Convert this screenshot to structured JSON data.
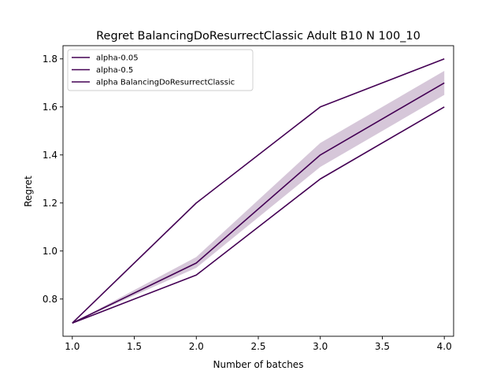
{
  "chart_data": {
    "type": "line",
    "title": "Regret BalancingDoResurrectClassic Adult B10 N 100_10",
    "xlabel": "Number of batches",
    "ylabel": "Regret",
    "xlim": [
      0.925,
      4.075
    ],
    "ylim": [
      0.645,
      1.855
    ],
    "xticks": [
      "1.0",
      "1.5",
      "2.0",
      "2.5",
      "3.0",
      "3.5",
      "4.0"
    ],
    "yticks": [
      "0.8",
      "1.0",
      "1.2",
      "1.4",
      "1.6",
      "1.8"
    ],
    "grid": false,
    "legend_position": "top-left",
    "line_color": "#440154",
    "band_color": "#440154",
    "x": [
      1.0,
      2.0,
      3.0,
      4.0
    ],
    "series": [
      {
        "name": "alpha-0.05",
        "values": [
          0.7,
          1.2,
          1.6,
          1.8
        ]
      },
      {
        "name": "alpha-0.5",
        "values": [
          0.7,
          0.95,
          1.4,
          1.7
        ],
        "band_lower": [
          0.7,
          0.93,
          1.35,
          1.65
        ],
        "band_upper": [
          0.7,
          0.975,
          1.45,
          1.75
        ]
      },
      {
        "name": "alpha BalancingDoResurrectClassic",
        "values": [
          0.7,
          0.9,
          1.3,
          1.6
        ]
      }
    ]
  }
}
